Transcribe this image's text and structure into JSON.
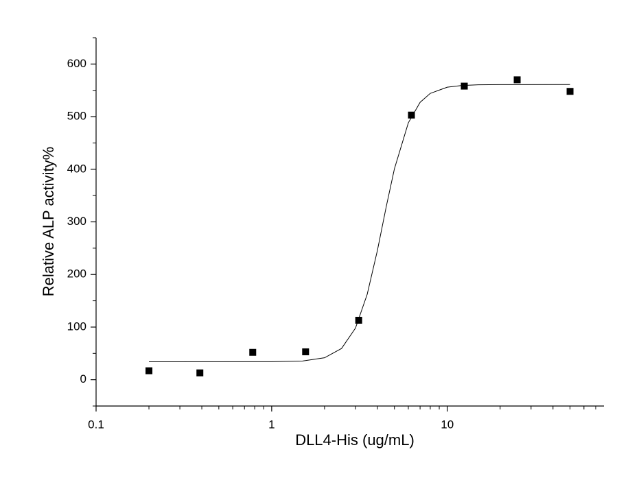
{
  "chart_data": {
    "type": "scatter",
    "x_label": "DLL4-His (ug/mL)",
    "y_label": "Relative ALP activity%",
    "x_scale": "log",
    "xlim": [
      0.1,
      78
    ],
    "ylim": [
      -50,
      650
    ],
    "xticks": [
      0.1,
      1,
      10
    ],
    "xminorticks": [
      0.2,
      0.3,
      0.4,
      0.5,
      0.6,
      0.7,
      0.8,
      0.9,
      2,
      3,
      4,
      5,
      6,
      7,
      8,
      9,
      20,
      30,
      40,
      50,
      60,
      70
    ],
    "yticks": [
      0,
      100,
      200,
      300,
      400,
      500,
      600
    ],
    "yminorticks": [
      -50,
      50,
      150,
      250,
      350,
      450,
      550,
      650
    ],
    "grid": false,
    "series": [
      {
        "kind": "points",
        "color": "#000000",
        "x": [
          0.2,
          0.39,
          0.78,
          1.56,
          3.13,
          6.25,
          12.5,
          25,
          50
        ],
        "values": [
          17,
          13,
          52,
          53,
          113,
          503,
          558,
          570,
          548
        ]
      },
      {
        "kind": "line",
        "color": "#000000",
        "x": [
          0.2,
          1,
          1.5,
          2,
          2.5,
          3,
          3.5,
          4,
          4.5,
          5,
          6,
          7,
          8,
          10,
          12,
          15,
          20,
          50
        ],
        "values": [
          34,
          34.2,
          35.6,
          41.7,
          59.4,
          98,
          162.5,
          245.7,
          330.2,
          400.9,
          488.3,
          527.2,
          544.2,
          556,
          559.1,
          560.5,
          560.9,
          561
        ]
      }
    ]
  }
}
